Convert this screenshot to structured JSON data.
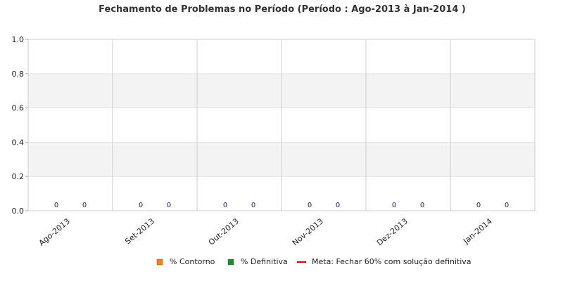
{
  "chart_data": {
    "type": "bar",
    "title": "Fechamento de Problemas no Período (Período : Ago-2013 à Jan-2014 )",
    "categories": [
      "Ago-2013",
      "Set-2013",
      "Out-2013",
      "Nov-2013",
      "Dez-2013",
      "Jan-2014"
    ],
    "series": [
      {
        "name": "% Contorno",
        "values": [
          0,
          0,
          0,
          0,
          0,
          0
        ],
        "color": "#f58220"
      },
      {
        "name": "% Definitiva",
        "values": [
          0,
          0,
          0,
          0,
          0,
          0
        ],
        "color": "#1e8c1e"
      }
    ],
    "line_series": {
      "name": "Meta: Fechar 60% com solução definitiva",
      "color": "#cc0000"
    },
    "data_labels": [
      "0",
      "0",
      "0",
      "0",
      "0",
      "0",
      "0",
      "0",
      "0",
      "0",
      "0",
      "0"
    ],
    "ylim": [
      0,
      1.0
    ],
    "yticks": [
      "0.0",
      "0.2",
      "0.4",
      "0.6",
      "0.8",
      "1.0"
    ],
    "grid": true,
    "legend_position": "bottom-center",
    "band_color": "#f3f3f3",
    "gridline_color": "#cccccc"
  }
}
